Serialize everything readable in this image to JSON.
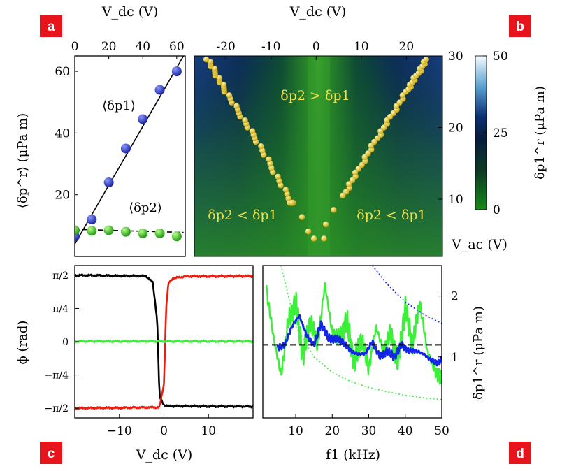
{
  "panels": {
    "a": {
      "label": "a",
      "xlabel": "V_dc (V)",
      "ylabel": "⟨δp^r⟩ (μPa m)",
      "xticks": [
        "0",
        "20",
        "40",
        "60"
      ],
      "yticks": [
        "20",
        "40",
        "60"
      ],
      "annot1": "⟨δp1⟩",
      "annot2": "⟨δp2⟩"
    },
    "b": {
      "label": "b",
      "xlabel": "V_dc (V)",
      "ylabel": "V_ac (V)",
      "xticks": [
        "-20",
        "-10",
        "0",
        "10",
        "20"
      ],
      "yticks": [
        "10",
        "20",
        "30"
      ],
      "cbar_label": "δp1^r (μPa m)",
      "cbar_ticks": [
        "0",
        "25",
        "50"
      ],
      "region_top": "δp2 > δp1",
      "region_left": "δp2 < δp1",
      "region_right": "δp2 < δp1"
    },
    "c": {
      "label": "c",
      "xlabel": "V_dc (V)",
      "ylabel": "ϕ (rad)",
      "xticks": [
        "−10",
        "0",
        "10"
      ],
      "yticks": [
        "π/2",
        "π/4",
        "0",
        "−π/4",
        "−π/2"
      ]
    },
    "d": {
      "label": "d",
      "xlabel": "f1 (kHz)",
      "ylabel": "δp1^r (μPa m)",
      "xticks": [
        "10",
        "20",
        "30",
        "40",
        "50"
      ],
      "yticks": [
        "1",
        "2"
      ]
    }
  },
  "colors": {
    "label_bg": "#e8141b",
    "blue_marker": "#2f3fc8",
    "green_marker": "#36d21c",
    "yellow_marker": "#f1d232",
    "red_line": "#ee1c0e",
    "green_line": "#3cf03a",
    "blue_line": "#1426e6"
  },
  "chart_data": [
    {
      "panel": "a",
      "type": "scatter",
      "xlabel": "V_dc (V)",
      "ylabel": "⟨δp^r⟩ (μPa m)",
      "xlim": [
        0,
        65
      ],
      "ylim": [
        0,
        65
      ],
      "series": [
        {
          "name": "⟨δp1⟩",
          "x": [
            0,
            10,
            20,
            30,
            40,
            50,
            60
          ],
          "y": [
            6.5,
            12,
            24,
            35,
            44.5,
            54,
            60
          ]
        },
        {
          "name": "⟨δp2⟩",
          "x": [
            0,
            10,
            20,
            30,
            40,
            50,
            60
          ],
          "y": [
            8.5,
            8.3,
            8.5,
            8,
            7.5,
            7.5,
            6.5
          ]
        }
      ],
      "fits": [
        {
          "series": "⟨δp1⟩",
          "style": "solid",
          "x": [
            0,
            64
          ],
          "y": [
            4,
            65
          ]
        },
        {
          "series": "⟨δp2⟩",
          "style": "dashed",
          "x": [
            0,
            64
          ],
          "y": [
            8.8,
            7.8
          ]
        }
      ]
    },
    {
      "panel": "b",
      "type": "heatmap",
      "xlabel": "V_dc (V)",
      "ylabel": "V_ac (V)",
      "xlim": [
        -27,
        28
      ],
      "ylim": [
        2,
        30
      ],
      "colorbar": {
        "label": "δp1^r (μPa m)",
        "range": [
          0,
          50
        ],
        "ticks": [
          0,
          25,
          50
        ]
      },
      "boundary_points": [
        {
          "x": -5.5,
          "y": 9.5
        },
        {
          "x": -3.5,
          "y": 7.5
        },
        {
          "x": -1.5,
          "y": 5.5
        },
        {
          "x": -0.5,
          "y": 4.5
        },
        {
          "x": 1.5,
          "y": 4.5
        },
        {
          "x": 2.5,
          "y": 6.5
        },
        {
          "x": 4,
          "y": 8.5
        },
        {
          "x": 6,
          "y": 10.5
        },
        {
          "x": -13,
          "y": 18
        },
        {
          "x": -20,
          "y": 25
        },
        {
          "x": -24,
          "y": 29.5
        },
        {
          "x": 13,
          "y": 18
        },
        {
          "x": 20,
          "y": 25
        },
        {
          "x": 24.5,
          "y": 29.5
        }
      ],
      "annotations": [
        "δp2 > δp1",
        "δp2 < δp1",
        "δp2 < δp1"
      ]
    },
    {
      "panel": "c",
      "type": "line",
      "xlabel": "V_dc (V)",
      "ylabel": "ϕ (rad)",
      "xlim": [
        -20,
        20
      ],
      "ylim": [
        -1.8,
        1.8
      ],
      "series": [
        {
          "color": "black",
          "x": [
            -20,
            -4,
            -2.5,
            -1.5,
            -1,
            0,
            1,
            20
          ],
          "y": [
            1.5708,
            1.55,
            1.4,
            0.5,
            -1.3,
            -1.49,
            -1.52,
            -1.53
          ]
        },
        {
          "color": "red",
          "x": [
            -20,
            -1,
            0,
            0.5,
            1,
            2,
            5,
            20
          ],
          "y": [
            -1.5708,
            -1.55,
            -1.0,
            0.8,
            1.38,
            1.5,
            1.545,
            1.55
          ]
        },
        {
          "color": "green",
          "x": [
            -20,
            20
          ],
          "y": [
            0.01,
            0.01
          ]
        }
      ]
    },
    {
      "panel": "d",
      "type": "line",
      "xlabel": "f1 (kHz)",
      "ylabel": "δp1^r (μPa m)",
      "xlim": [
        1,
        50
      ],
      "ylim": [
        0,
        2.5
      ],
      "series": [
        {
          "color": "green",
          "x": [
            2,
            4,
            6,
            8,
            10,
            12,
            14,
            16,
            18,
            20,
            22,
            24,
            26,
            28,
            30,
            32,
            34,
            36,
            38,
            40,
            42,
            44,
            46,
            48,
            50
          ],
          "y": [
            2.1,
            1.3,
            0.7,
            1.6,
            1.9,
            1.0,
            1.6,
            1.2,
            2.2,
            1.4,
            1.3,
            1.6,
            0.9,
            1.3,
            0.8,
            1.5,
            1.1,
            1.4,
            0.9,
            1.8,
            1.2,
            1.9,
            1.1,
            0.8,
            0.6
          ]
        },
        {
          "color": "blue",
          "x": [
            5,
            7,
            9,
            11,
            13,
            15,
            17,
            19,
            21,
            23,
            25,
            27,
            29,
            31,
            33,
            35,
            37,
            39,
            41,
            43,
            45,
            47,
            49,
            50
          ],
          "y": [
            1.15,
            1.2,
            1.5,
            1.68,
            1.35,
            1.2,
            1.55,
            1.3,
            1.3,
            1.25,
            1.1,
            1.05,
            1.05,
            1.25,
            1.0,
            1.1,
            1.0,
            1.2,
            1.1,
            1.1,
            1.05,
            0.95,
            0.9,
            0.95
          ]
        },
        {
          "color": "black",
          "style": "dashed",
          "x": [
            1,
            50
          ],
          "y": [
            1.2,
            1.2
          ]
        },
        {
          "color": "green",
          "style": "dotted",
          "x": [
            6,
            10,
            15,
            20,
            25,
            30,
            35,
            40,
            45,
            50
          ],
          "y": [
            2.5,
            1.5,
            1.0,
            0.75,
            0.6,
            0.5,
            0.43,
            0.37,
            0.33,
            0.3
          ]
        },
        {
          "color": "blue",
          "style": "dotted",
          "x": [
            31,
            35,
            40,
            45,
            50
          ],
          "y": [
            2.5,
            2.2,
            1.9,
            1.7,
            1.55
          ]
        }
      ]
    }
  ]
}
